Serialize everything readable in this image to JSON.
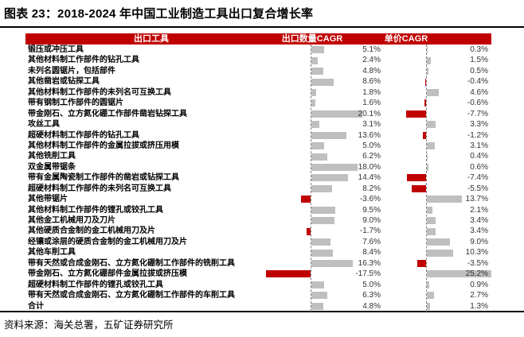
{
  "title": "图表 23：2018-2024 年中国工业制造工具出口复合增长率",
  "source": "资料来源：海关总署，五矿证券研究所",
  "table": {
    "headers": [
      "出口工具",
      "出口数量CAGR",
      "单价CAGR"
    ],
    "header_bg_color": "#c00000",
    "header_text_color": "#ffffff"
  },
  "chart_data": {
    "type": "bar",
    "title": "2018-2024 年中国工业制造工具出口复合增长率",
    "unit": "%",
    "legend_position": "header-row",
    "grid": false,
    "positive_bar_color": "#bfbfbf",
    "negative_bar_color": "#c00000",
    "categories": [
      "锻压或冲压工具",
      "其他材料制工作部件的钻孔工具",
      "未列名圆锯片，包括部件",
      "其他凿岩或钻探工具",
      "其他材料制工作部件的未列名可互换工具",
      "带有钢制工作部件的圆锯片",
      "带金刚石、立方氮化硼工作部件凿岩钻探工具",
      "攻丝工具",
      "超硬材料制工作部件的钻孔工具",
      "其他材料制工作部件的金属拉拔或挤压用模",
      "其他铣削工具",
      "双金属带锯条",
      "带有金属陶瓷制工作部件的凿岩或钻探工具",
      "超硬材料制工作部件的未列名可互换工具",
      "其他带锯片",
      "其他材料制工作部件的镗孔或铰孔工具",
      "其他金工机械用刀及刀片",
      "其他硬质合金制的金工机械用刀及片",
      "经镶或涂层的硬质合金制的金工机械用刀及片",
      "其他车削工具",
      "带有天然或合成金刚石、立方氮化硼制工作部件的铣削工具",
      "带金刚石、立方氮化硼部件金属拉拔或挤压模",
      "超硬材料制工作部件的镗孔或铰孔工具",
      "带有天然或合成金刚石、立方氮化硼制工作部件的车削工具",
      "合计"
    ],
    "series": [
      {
        "name": "出口数量CAGR",
        "values": [
          5.1,
          2.4,
          4.8,
          8.6,
          1.8,
          1.6,
          20.1,
          3.1,
          13.6,
          5.0,
          6.2,
          18.0,
          14.4,
          8.2,
          -3.6,
          9.5,
          9.0,
          -1.7,
          7.6,
          8.4,
          16.3,
          -17.5,
          5.0,
          6.3,
          4.8
        ]
      },
      {
        "name": "单价CAGR",
        "values": [
          0.3,
          1.5,
          0.5,
          -0.4,
          4.6,
          -0.6,
          -7.7,
          3.3,
          -1.2,
          3.1,
          0.4,
          0.6,
          -7.4,
          -5.5,
          13.7,
          2.1,
          3.4,
          3.4,
          9.0,
          10.3,
          -3.5,
          25.2,
          0.9,
          2.7,
          1.3
        ]
      }
    ]
  }
}
